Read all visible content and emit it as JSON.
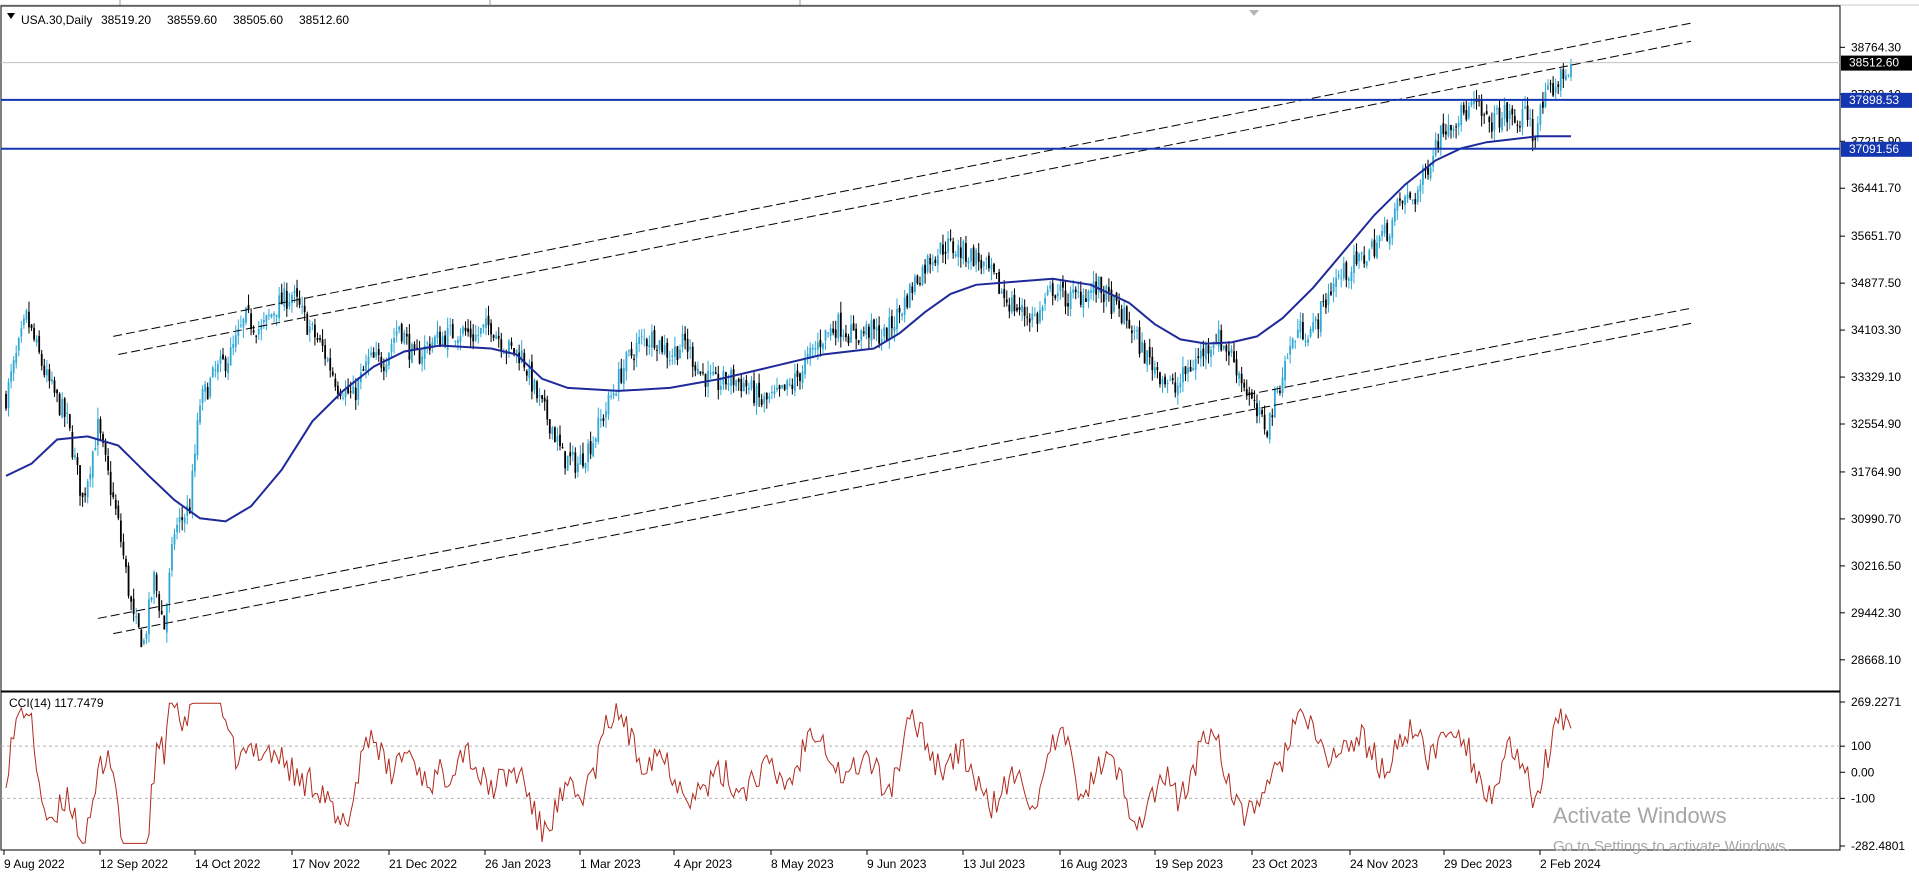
{
  "colors": {
    "background": "#ffffff",
    "bull_candle": "#2fa8d6",
    "bear_candle": "#000000",
    "moving_average": "#1f2a9a",
    "horizontal_line": "#1436b0",
    "cci_line": "#b02a1e",
    "price_label_bg": "#000000",
    "level_label_bg": "#1436b0",
    "watermark": "#a6a6a6"
  },
  "chart_data": [
    {
      "type": "candlestick",
      "title": "USA.30,Daily",
      "ohlc_header": [
        "38519.20",
        "38559.60",
        "38505.60",
        "38512.60"
      ],
      "y_ticks": [
        "38764.30",
        "37990.10",
        "37215.90",
        "36441.70",
        "35651.70",
        "34877.50",
        "34103.30",
        "33329.10",
        "32554.90",
        "31764.90",
        "30990.70",
        "30216.50",
        "29442.30",
        "28668.10"
      ],
      "ylim": [
        28500,
        39050
      ],
      "current_price_label": "38512.60",
      "horizontal_levels": [
        {
          "label": "37898.53",
          "value": 37898.53
        },
        {
          "label": "37091.56",
          "value": 37091.56
        }
      ],
      "x_tick_labels": [
        "9 Aug 2022",
        "12 Sep 2022",
        "14 Oct 2022",
        "17 Nov 2022",
        "21 Dec 2022",
        "26 Jan 2023",
        "1 Mar 2023",
        "4 Apr 2023",
        "8 May 2023",
        "9 Jun 2023",
        "13 Jul 2023",
        "16 Aug 2023",
        "19 Sep 2023",
        "23 Oct 2023",
        "24 Nov 2023",
        "29 Dec 2023",
        "2 Feb 2024"
      ],
      "close_path": [
        {
          "i": 0,
          "v": 33000
        },
        {
          "i": 8,
          "v": 34300
        },
        {
          "i": 16,
          "v": 33300
        },
        {
          "i": 24,
          "v": 32600
        },
        {
          "i": 30,
          "v": 31300
        },
        {
          "i": 36,
          "v": 32500
        },
        {
          "i": 44,
          "v": 30900
        },
        {
          "i": 50,
          "v": 29300
        },
        {
          "i": 54,
          "v": 28950
        },
        {
          "i": 58,
          "v": 30000
        },
        {
          "i": 62,
          "v": 29200
        },
        {
          "i": 66,
          "v": 30800
        },
        {
          "i": 72,
          "v": 31200
        },
        {
          "i": 76,
          "v": 32900
        },
        {
          "i": 82,
          "v": 33400
        },
        {
          "i": 88,
          "v": 33700
        },
        {
          "i": 94,
          "v": 34300
        },
        {
          "i": 100,
          "v": 34100
        },
        {
          "i": 106,
          "v": 34500
        },
        {
          "i": 112,
          "v": 34700
        },
        {
          "i": 118,
          "v": 34200
        },
        {
          "i": 124,
          "v": 33800
        },
        {
          "i": 130,
          "v": 33200
        },
        {
          "i": 136,
          "v": 33000
        },
        {
          "i": 142,
          "v": 33600
        },
        {
          "i": 148,
          "v": 33600
        },
        {
          "i": 154,
          "v": 34200
        },
        {
          "i": 160,
          "v": 33600
        },
        {
          "i": 166,
          "v": 33900
        },
        {
          "i": 172,
          "v": 34000
        },
        {
          "i": 178,
          "v": 34100
        },
        {
          "i": 184,
          "v": 34000
        },
        {
          "i": 190,
          "v": 34200
        },
        {
          "i": 196,
          "v": 33800
        },
        {
          "i": 202,
          "v": 33700
        },
        {
          "i": 208,
          "v": 33000
        },
        {
          "i": 214,
          "v": 32500
        },
        {
          "i": 218,
          "v": 32000
        },
        {
          "i": 224,
          "v": 31900
        },
        {
          "i": 230,
          "v": 32300
        },
        {
          "i": 236,
          "v": 32900
        },
        {
          "i": 242,
          "v": 33500
        },
        {
          "i": 248,
          "v": 33900
        },
        {
          "i": 254,
          "v": 34000
        },
        {
          "i": 260,
          "v": 33700
        },
        {
          "i": 266,
          "v": 33900
        },
        {
          "i": 272,
          "v": 33400
        },
        {
          "i": 278,
          "v": 33200
        },
        {
          "i": 284,
          "v": 33300
        },
        {
          "i": 290,
          "v": 33200
        },
        {
          "i": 296,
          "v": 32900
        },
        {
          "i": 302,
          "v": 33000
        },
        {
          "i": 308,
          "v": 33200
        },
        {
          "i": 314,
          "v": 33600
        },
        {
          "i": 320,
          "v": 34000
        },
        {
          "i": 326,
          "v": 34200
        },
        {
          "i": 332,
          "v": 34000
        },
        {
          "i": 338,
          "v": 34100
        },
        {
          "i": 344,
          "v": 34000
        },
        {
          "i": 350,
          "v": 34400
        },
        {
          "i": 356,
          "v": 34900
        },
        {
          "i": 362,
          "v": 35300
        },
        {
          "i": 368,
          "v": 35500
        },
        {
          "i": 374,
          "v": 35400
        },
        {
          "i": 380,
          "v": 35300
        },
        {
          "i": 386,
          "v": 35000
        },
        {
          "i": 392,
          "v": 34600
        },
        {
          "i": 398,
          "v": 34400
        },
        {
          "i": 404,
          "v": 34300
        },
        {
          "i": 410,
          "v": 34800
        },
        {
          "i": 416,
          "v": 34600
        },
        {
          "i": 422,
          "v": 34700
        },
        {
          "i": 428,
          "v": 34800
        },
        {
          "i": 434,
          "v": 34500
        },
        {
          "i": 440,
          "v": 34200
        },
        {
          "i": 446,
          "v": 33700
        },
        {
          "i": 452,
          "v": 33400
        },
        {
          "i": 458,
          "v": 33100
        },
        {
          "i": 462,
          "v": 33400
        },
        {
          "i": 468,
          "v": 33700
        },
        {
          "i": 474,
          "v": 34000
        },
        {
          "i": 480,
          "v": 33700
        },
        {
          "i": 486,
          "v": 33100
        },
        {
          "i": 490,
          "v": 32700
        },
        {
          "i": 494,
          "v": 32500
        },
        {
          "i": 498,
          "v": 33100
        },
        {
          "i": 502,
          "v": 33700
        },
        {
          "i": 506,
          "v": 34100
        },
        {
          "i": 512,
          "v": 34100
        },
        {
          "i": 516,
          "v": 34500
        },
        {
          "i": 520,
          "v": 34900
        },
        {
          "i": 526,
          "v": 35100
        },
        {
          "i": 532,
          "v": 35300
        },
        {
          "i": 536,
          "v": 35500
        },
        {
          "i": 542,
          "v": 35800
        },
        {
          "i": 546,
          "v": 36200
        },
        {
          "i": 552,
          "v": 36300
        },
        {
          "i": 556,
          "v": 36700
        },
        {
          "i": 560,
          "v": 37200
        },
        {
          "i": 564,
          "v": 37500
        },
        {
          "i": 568,
          "v": 37600
        },
        {
          "i": 572,
          "v": 37700
        },
        {
          "i": 576,
          "v": 37800
        },
        {
          "i": 580,
          "v": 37500
        },
        {
          "i": 584,
          "v": 37600
        },
        {
          "i": 588,
          "v": 37650
        },
        {
          "i": 592,
          "v": 37500
        },
        {
          "i": 596,
          "v": 37700
        },
        {
          "i": 598,
          "v": 37300
        },
        {
          "i": 602,
          "v": 37800
        },
        {
          "i": 606,
          "v": 38100
        },
        {
          "i": 610,
          "v": 38300
        },
        {
          "i": 613,
          "v": 38512
        }
      ],
      "moving_average_path": [
        {
          "i": 0,
          "v": 31700
        },
        {
          "i": 10,
          "v": 31900
        },
        {
          "i": 20,
          "v": 32300
        },
        {
          "i": 32,
          "v": 32350
        },
        {
          "i": 44,
          "v": 32200
        },
        {
          "i": 56,
          "v": 31700
        },
        {
          "i": 66,
          "v": 31300
        },
        {
          "i": 76,
          "v": 31000
        },
        {
          "i": 86,
          "v": 30950
        },
        {
          "i": 96,
          "v": 31200
        },
        {
          "i": 108,
          "v": 31800
        },
        {
          "i": 120,
          "v": 32600
        },
        {
          "i": 132,
          "v": 33100
        },
        {
          "i": 144,
          "v": 33500
        },
        {
          "i": 156,
          "v": 33750
        },
        {
          "i": 170,
          "v": 33850
        },
        {
          "i": 190,
          "v": 33800
        },
        {
          "i": 200,
          "v": 33700
        },
        {
          "i": 210,
          "v": 33300
        },
        {
          "i": 220,
          "v": 33150
        },
        {
          "i": 240,
          "v": 33100
        },
        {
          "i": 260,
          "v": 33150
        },
        {
          "i": 280,
          "v": 33300
        },
        {
          "i": 300,
          "v": 33500
        },
        {
          "i": 320,
          "v": 33700
        },
        {
          "i": 340,
          "v": 33800
        },
        {
          "i": 350,
          "v": 34050
        },
        {
          "i": 360,
          "v": 34400
        },
        {
          "i": 370,
          "v": 34700
        },
        {
          "i": 380,
          "v": 34850
        },
        {
          "i": 395,
          "v": 34900
        },
        {
          "i": 410,
          "v": 34950
        },
        {
          "i": 425,
          "v": 34850
        },
        {
          "i": 440,
          "v": 34550
        },
        {
          "i": 450,
          "v": 34200
        },
        {
          "i": 460,
          "v": 33950
        },
        {
          "i": 470,
          "v": 33880
        },
        {
          "i": 480,
          "v": 33900
        },
        {
          "i": 490,
          "v": 34000
        },
        {
          "i": 500,
          "v": 34300
        },
        {
          "i": 512,
          "v": 34800
        },
        {
          "i": 524,
          "v": 35400
        },
        {
          "i": 536,
          "v": 36000
        },
        {
          "i": 548,
          "v": 36500
        },
        {
          "i": 560,
          "v": 36900
        },
        {
          "i": 570,
          "v": 37100
        },
        {
          "i": 580,
          "v": 37200
        },
        {
          "i": 600,
          "v": 37300
        },
        {
          "i": 613,
          "v": 37300
        }
      ],
      "channel_lines": [
        {
          "name": "",
          "from": {
            "i": 42,
            "v": 34000
          },
          "to": {
            "i": 613,
            "v": 38900
          }
        },
        {
          "name": "",
          "from": {
            "i": 44,
            "v": 33700
          },
          "to": {
            "i": 613,
            "v": 38600
          }
        },
        {
          "name": "",
          "from": {
            "i": 36,
            "v": 29350
          },
          "to": {
            "i": 613,
            "v": 34200
          }
        },
        {
          "name": "",
          "from": {
            "i": 42,
            "v": 29100
          },
          "to": {
            "i": 613,
            "v": 33950
          }
        }
      ],
      "bar_count": 614
    },
    {
      "type": "line",
      "title": "CCI(14) 117.7479",
      "y_ticks": [
        "269.2271",
        "100",
        "0.00",
        "-100",
        "-282.4801"
      ],
      "ylim": [
        -282.4801,
        269.2271
      ],
      "levels": [
        100,
        -100
      ],
      "current_value": 117.7479
    }
  ],
  "watermark": {
    "line1": "Activate Windows",
    "line2": "Go to Settings to activate Windows."
  }
}
